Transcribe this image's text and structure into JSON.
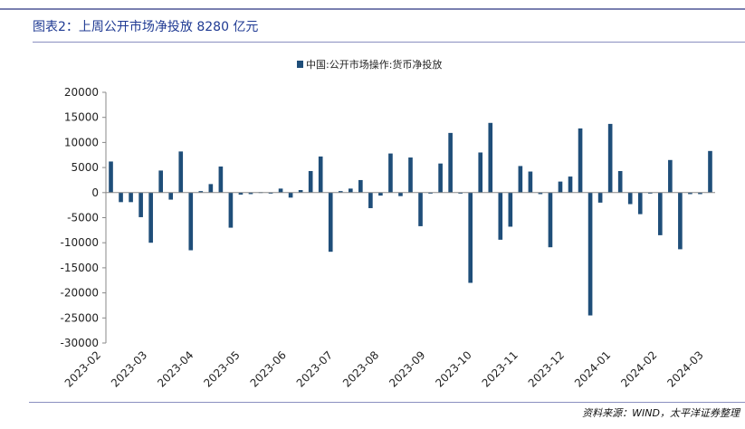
{
  "header": {
    "title": "图表2：上周公开市场净投放 8280 亿元"
  },
  "footer": {
    "source": "资料来源：WIND，太平洋证券整理"
  },
  "colors": {
    "bar": "#1f4e79",
    "axis": "#888888"
  },
  "chart_data": {
    "type": "bar",
    "title": "",
    "legend": [
      "中国:公开市场操作:货币净投放"
    ],
    "legend_position": "top-center",
    "xlabel": "",
    "ylabel": "",
    "ylim": [
      -30000,
      20000
    ],
    "yticks": [
      20000,
      15000,
      10000,
      5000,
      0,
      -5000,
      -10000,
      -15000,
      -20000,
      -25000,
      -30000
    ],
    "x_tick_labels": [
      "2023-02",
      "2023-03",
      "2023-04",
      "2023-05",
      "2023-06",
      "2023-07",
      "2023-08",
      "2023-09",
      "2023-10",
      "2023-11",
      "2023-12",
      "2024-01",
      "2024-02",
      "2024-03"
    ],
    "series": [
      {
        "name": "中国:公开市场操作:货币净投放",
        "values": [
          6200,
          -1900,
          -1900,
          -4900,
          -10000,
          4400,
          -1400,
          8200,
          -11500,
          300,
          1700,
          5200,
          -7000,
          -400,
          -300,
          100,
          -200,
          800,
          -1000,
          500,
          4300,
          7200,
          -11800,
          300,
          800,
          2500,
          -3100,
          -600,
          7800,
          -700,
          7000,
          -6700,
          -200,
          5800,
          11900,
          -200,
          -18000,
          8000,
          13900,
          -9400,
          -6800,
          5300,
          4200,
          -300,
          -10900,
          2200,
          3200,
          12800,
          -24500,
          -2000,
          13700,
          4300,
          -2300,
          -4300,
          -200,
          -8500,
          6500,
          -11300,
          -300,
          -300,
          8300
        ]
      }
    ]
  }
}
